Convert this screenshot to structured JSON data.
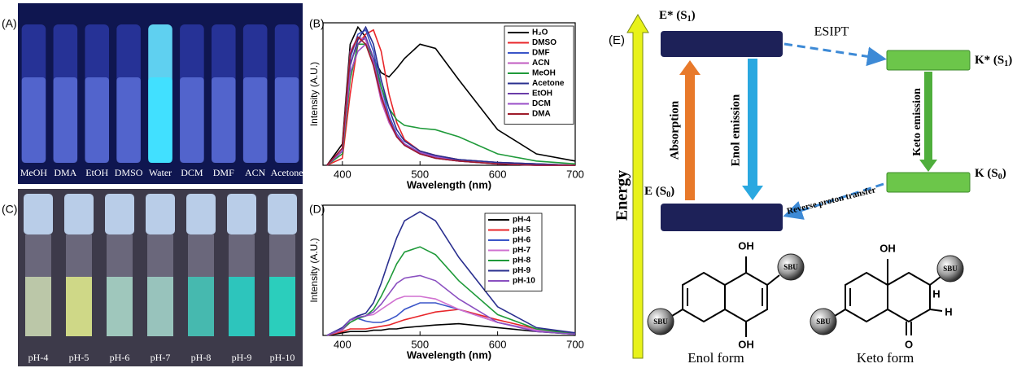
{
  "panels": {
    "a": "(A)",
    "b": "(B)",
    "c": "(C)",
    "d": "(D)",
    "e": "(E)"
  },
  "photo_a": {
    "labels": [
      "MeOH",
      "DMA",
      "EtOH",
      "DMSO",
      "Water",
      "DCM",
      "DMF",
      "ACN",
      "Acetone"
    ]
  },
  "photo_c": {
    "labels": [
      "pH-4",
      "pH-5",
      "pH-6",
      "pH-7",
      "pH-8",
      "pH-9",
      "pH-10"
    ]
  },
  "chart_data": [
    {
      "type": "line",
      "ylabel": "Intensity (A.U.)",
      "xlabel": "Wavelength (nm)",
      "xlim": [
        375,
        700
      ],
      "xticks": [
        400,
        500,
        600,
        700
      ],
      "ylim": [
        0,
        1
      ],
      "x": [
        380,
        400,
        410,
        420,
        430,
        440,
        450,
        460,
        470,
        480,
        500,
        520,
        550,
        600,
        650,
        700
      ],
      "series": [
        {
          "name": "H₂O",
          "color": "#000000",
          "values": [
            0,
            0.15,
            0.85,
            0.97,
            0.9,
            0.75,
            0.65,
            0.62,
            0.68,
            0.75,
            0.85,
            0.82,
            0.6,
            0.25,
            0.08,
            0.03
          ]
        },
        {
          "name": "DMSO",
          "color": "#e8262a",
          "values": [
            0,
            0.05,
            0.5,
            0.85,
            0.92,
            0.95,
            0.8,
            0.5,
            0.3,
            0.18,
            0.1,
            0.07,
            0.04,
            0.02,
            0.01,
            0
          ]
        },
        {
          "name": "DMF",
          "color": "#3a55c8",
          "values": [
            0,
            0.1,
            0.75,
            0.92,
            0.95,
            0.8,
            0.55,
            0.35,
            0.22,
            0.15,
            0.09,
            0.06,
            0.04,
            0.02,
            0.01,
            0
          ]
        },
        {
          "name": "ACN",
          "color": "#c05bc0",
          "values": [
            0,
            0.12,
            0.8,
            0.9,
            0.88,
            0.7,
            0.45,
            0.3,
            0.2,
            0.14,
            0.08,
            0.05,
            0.03,
            0.01,
            0,
            0
          ]
        },
        {
          "name": "MeOH",
          "color": "#1f9a3a",
          "values": [
            0,
            0.08,
            0.6,
            0.85,
            0.85,
            0.75,
            0.55,
            0.4,
            0.32,
            0.28,
            0.26,
            0.25,
            0.2,
            0.08,
            0.03,
            0.01
          ]
        },
        {
          "name": "Acetone",
          "color": "#2a2f8f",
          "values": [
            0,
            0.1,
            0.7,
            0.88,
            0.97,
            0.85,
            0.6,
            0.4,
            0.25,
            0.17,
            0.1,
            0.07,
            0.04,
            0.02,
            0.01,
            0
          ]
        },
        {
          "name": "EtOH",
          "color": "#6a3da8",
          "values": [
            0,
            0.1,
            0.72,
            0.85,
            0.9,
            0.75,
            0.5,
            0.32,
            0.2,
            0.14,
            0.08,
            0.05,
            0.03,
            0.01,
            0,
            0
          ]
        },
        {
          "name": "DCM",
          "color": "#9a4fc8",
          "values": [
            0,
            0.1,
            0.65,
            0.8,
            0.85,
            0.72,
            0.5,
            0.33,
            0.21,
            0.15,
            0.09,
            0.06,
            0.03,
            0.01,
            0,
            0
          ]
        },
        {
          "name": "DMA",
          "color": "#9e1b2a",
          "values": [
            0,
            0.12,
            0.78,
            0.9,
            0.85,
            0.7,
            0.48,
            0.32,
            0.2,
            0.14,
            0.08,
            0.05,
            0.03,
            0.01,
            0,
            0
          ]
        }
      ]
    },
    {
      "type": "line",
      "ylabel": "Intensity (A.U.)",
      "xlabel": "Wavelength (nm)",
      "xlim": [
        375,
        700
      ],
      "xticks": [
        400,
        500,
        600,
        700
      ],
      "ylim": [
        0,
        1
      ],
      "x": [
        380,
        400,
        410,
        420,
        430,
        440,
        450,
        460,
        470,
        480,
        500,
        520,
        550,
        600,
        650,
        700
      ],
      "series": [
        {
          "name": "pH-4",
          "color": "#000000",
          "values": [
            0,
            0.02,
            0.03,
            0.03,
            0.03,
            0.04,
            0.04,
            0.05,
            0.05,
            0.06,
            0.07,
            0.08,
            0.09,
            0.06,
            0.03,
            0.01
          ]
        },
        {
          "name": "pH-5",
          "color": "#e8262a",
          "values": [
            0,
            0.03,
            0.05,
            0.05,
            0.05,
            0.06,
            0.07,
            0.08,
            0.1,
            0.12,
            0.15,
            0.18,
            0.2,
            0.12,
            0.05,
            0.02
          ]
        },
        {
          "name": "pH-6",
          "color": "#3a55c8",
          "values": [
            0,
            0.05,
            0.12,
            0.13,
            0.11,
            0.1,
            0.1,
            0.12,
            0.15,
            0.2,
            0.25,
            0.25,
            0.2,
            0.1,
            0.04,
            0.01
          ]
        },
        {
          "name": "pH-7",
          "color": "#d070d0",
          "values": [
            0,
            0.04,
            0.1,
            0.14,
            0.15,
            0.16,
            0.2,
            0.24,
            0.28,
            0.3,
            0.3,
            0.28,
            0.2,
            0.1,
            0.04,
            0.01
          ]
        },
        {
          "name": "pH-8",
          "color": "#1f9a3a",
          "values": [
            0,
            0.05,
            0.1,
            0.13,
            0.15,
            0.2,
            0.3,
            0.42,
            0.55,
            0.64,
            0.68,
            0.62,
            0.42,
            0.16,
            0.05,
            0.01
          ]
        },
        {
          "name": "pH-9",
          "color": "#2a2f8f",
          "values": [
            0,
            0.06,
            0.12,
            0.15,
            0.17,
            0.25,
            0.4,
            0.58,
            0.75,
            0.88,
            0.95,
            0.88,
            0.6,
            0.22,
            0.06,
            0.02
          ]
        },
        {
          "name": "pH-10",
          "color": "#8a4fc0",
          "values": [
            0,
            0.05,
            0.12,
            0.14,
            0.15,
            0.18,
            0.24,
            0.32,
            0.4,
            0.44,
            0.46,
            0.42,
            0.28,
            0.1,
            0.03,
            0.01
          ]
        }
      ]
    }
  ],
  "diagram": {
    "excited_enol": [
      "E* (S",
      "1",
      ")"
    ],
    "esipt": "ESIPT",
    "excited_keto": [
      "K* (S",
      "1",
      ")"
    ],
    "absorption": "Absorption",
    "enol_emission": "Enol emission",
    "keto_emission": "Keto emission",
    "ground_enol": [
      "E (S",
      "0",
      ")"
    ],
    "reverse": "Reverse proton transfer",
    "ground_keto": [
      "K (S",
      "0",
      ")"
    ],
    "energy": "Energy",
    "enol": {
      "oh_top": "OH",
      "oh_bottom": "OH",
      "sbu_right": "SBU",
      "sbu_left": "SBU",
      "caption": "Enol form"
    },
    "keto": {
      "oh_top": "OH",
      "sbu_right": "SBU",
      "sbu_left": "SBU",
      "h_top": "H",
      "h_bottom": "H",
      "oxo": "O",
      "caption": "Keto form"
    }
  }
}
